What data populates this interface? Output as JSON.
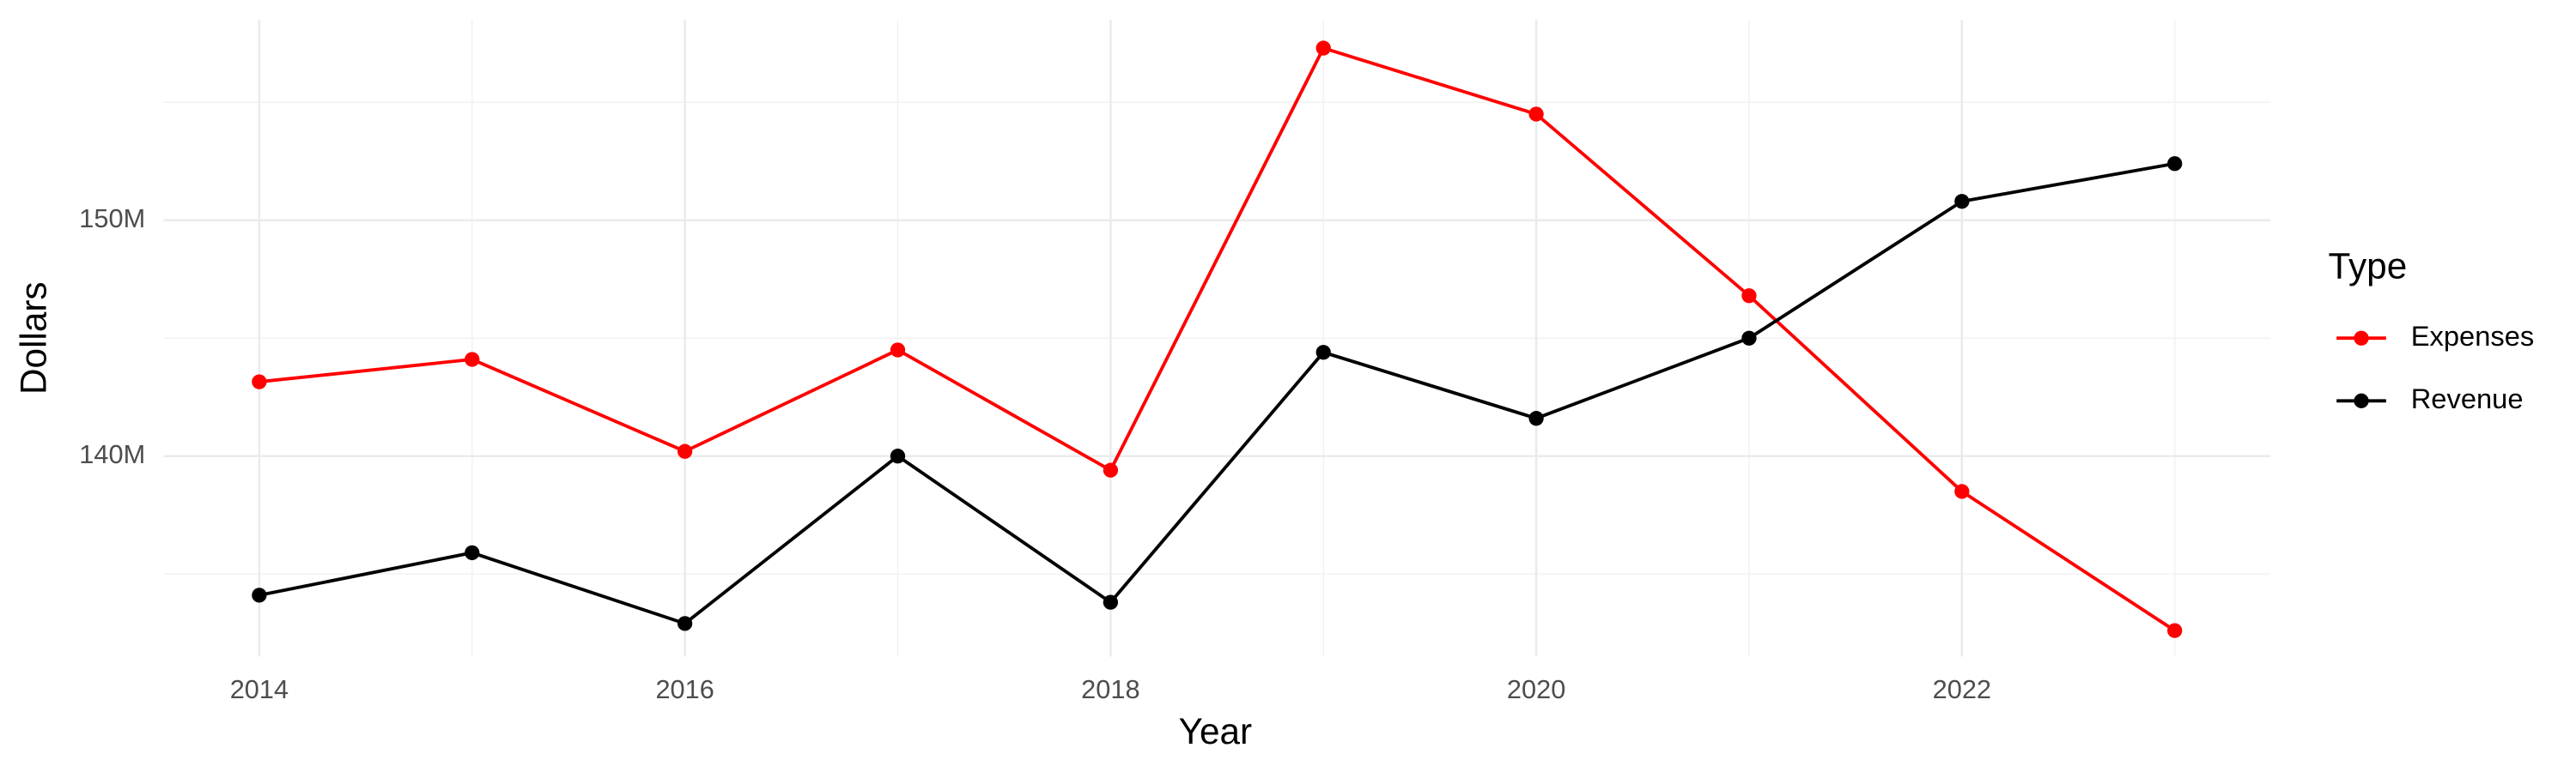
{
  "chart_data": {
    "type": "line",
    "x_label": "Year",
    "y_label": "Dollars",
    "legend_title": "Type",
    "legend": "right",
    "grid": true,
    "x": [
      2014,
      2015,
      2016,
      2017,
      2018,
      2019,
      2020,
      2021,
      2022,
      2023
    ],
    "series": [
      {
        "name": "Expenses",
        "color": "#ff0000",
        "values": [
          143150000,
          144100000,
          140200000,
          144500000,
          139400000,
          157300000,
          154500000,
          146800000,
          138500000,
          132600000
        ]
      },
      {
        "name": "Revenue",
        "color": "#000000",
        "values": [
          134100000,
          135900000,
          132900000,
          140000000,
          133800000,
          144400000,
          141600000,
          145000000,
          150800000,
          152400000
        ]
      }
    ],
    "xlim": [
      2013.55,
      2023.45
    ],
    "xticks": [
      2014,
      2016,
      2018,
      2020,
      2022
    ],
    "ylim": [
      131500000,
      158500000
    ],
    "yticks": [
      {
        "value": 140000000,
        "label": "140M"
      },
      {
        "value": 150000000,
        "label": "150M"
      }
    ]
  }
}
